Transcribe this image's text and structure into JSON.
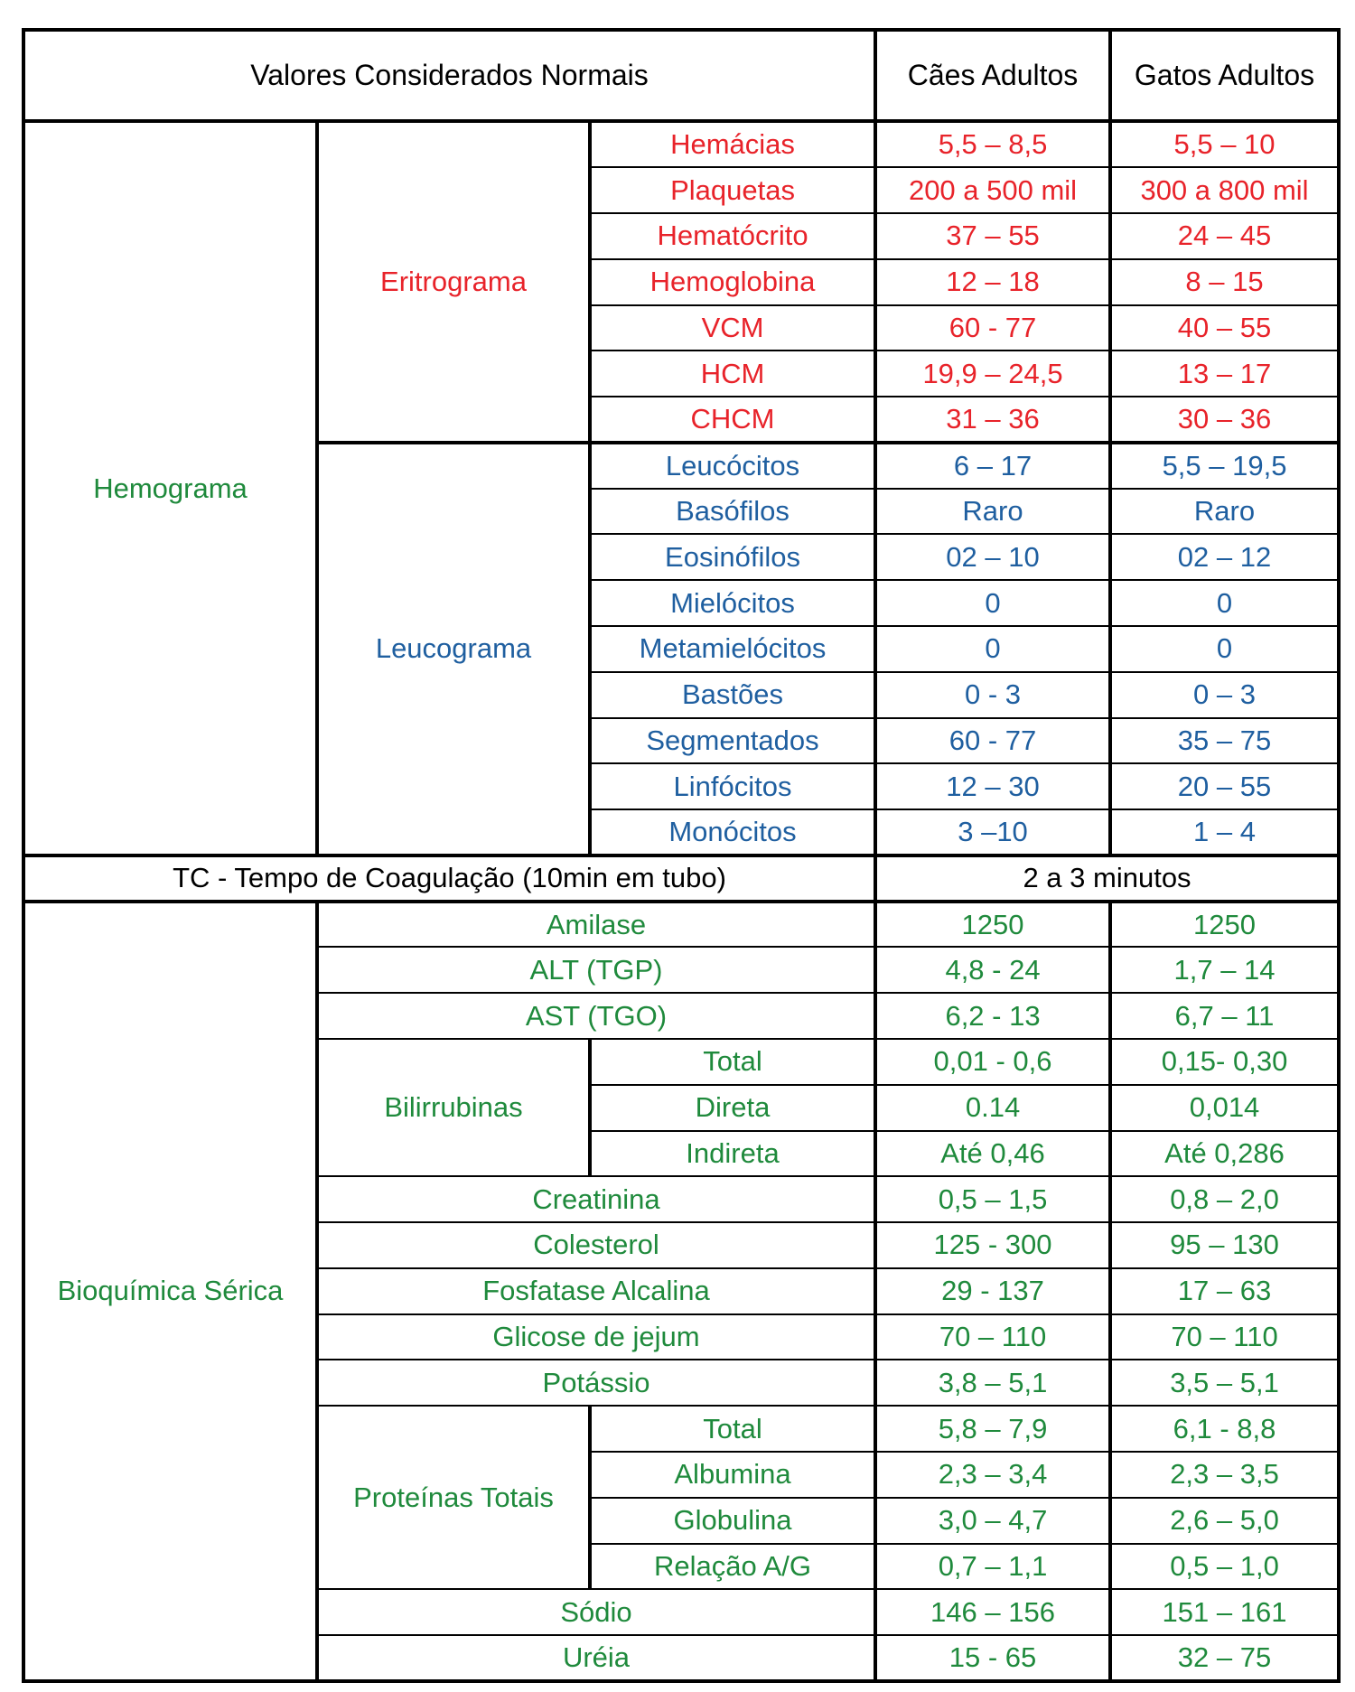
{
  "colors": {
    "red": "#e8232a",
    "blue": "#1f5fa0",
    "green": "#1f8a3c"
  },
  "header": {
    "title": "Valores Considerados Normais",
    "dogs": "Cães Adultos",
    "cats": "Gatos Adultos"
  },
  "hemograma": {
    "label": "Hemograma",
    "eritrograma": {
      "label": "Eritrograma",
      "rows": [
        {
          "name": "Hemácias",
          "dog": "5,5 – 8,5",
          "cat": "5,5 – 10"
        },
        {
          "name": "Plaquetas",
          "dog": "200 a 500 mil",
          "cat": "300 a 800 mil"
        },
        {
          "name": "Hematócrito",
          "dog": "37 – 55",
          "cat": "24 – 45"
        },
        {
          "name": "Hemoglobina",
          "dog": "12 – 18",
          "cat": "8 – 15"
        },
        {
          "name": "VCM",
          "dog": "60 - 77",
          "cat": "40 – 55"
        },
        {
          "name": "HCM",
          "dog": "19,9 – 24,5",
          "cat": "13 – 17"
        },
        {
          "name": "CHCM",
          "dog": "31 – 36",
          "cat": "30 – 36"
        }
      ]
    },
    "leucograma": {
      "label": "Leucograma",
      "rows": [
        {
          "name": "Leucócitos",
          "dog": "6 – 17",
          "cat": "5,5 – 19,5"
        },
        {
          "name": "Basófilos",
          "dog": "Raro",
          "cat": "Raro"
        },
        {
          "name": "Eosinófilos",
          "dog": "02 – 10",
          "cat": "02 – 12"
        },
        {
          "name": "Mielócitos",
          "dog": "0",
          "cat": "0"
        },
        {
          "name": "Metamielócitos",
          "dog": "0",
          "cat": "0"
        },
        {
          "name": "Bastões",
          "dog": "0 - 3",
          "cat": "0 – 3"
        },
        {
          "name": "Segmentados",
          "dog": "60 - 77",
          "cat": "35 – 75"
        },
        {
          "name": "Linfócitos",
          "dog": "12 – 30",
          "cat": "20 – 55"
        },
        {
          "name": "Monócitos",
          "dog": "3 –10",
          "cat": "1 – 4"
        }
      ]
    }
  },
  "tc": {
    "label": "TC - Tempo de Coagulação (10min em tubo)",
    "value": "2 a 3 minutos"
  },
  "bioquimica": {
    "label": "Bioquímica Sérica",
    "amilase": {
      "name": "Amilase",
      "dog": "1250",
      "cat": "1250"
    },
    "alt": {
      "name": "ALT (TGP)",
      "dog": "4,8 - 24",
      "cat": "1,7 – 14"
    },
    "ast": {
      "name": "AST (TGO)",
      "dog": "6,2 - 13",
      "cat": "6,7 – 11"
    },
    "bilirrubinas": {
      "label": "Bilirrubinas",
      "rows": [
        {
          "name": "Total",
          "dog": "0,01 - 0,6",
          "cat": "0,15- 0,30"
        },
        {
          "name": "Direta",
          "dog": "0.14",
          "cat": "0,014"
        },
        {
          "name": "Indireta",
          "dog": "Até 0,46",
          "cat": "Até 0,286"
        }
      ]
    },
    "creatinina": {
      "name": "Creatinina",
      "dog": "0,5 – 1,5",
      "cat": "0,8 – 2,0"
    },
    "colesterol": {
      "name": "Colesterol",
      "dog": "125 - 300",
      "cat": "95 – 130"
    },
    "fosfatase": {
      "name": "Fosfatase Alcalina",
      "dog": "29 - 137",
      "cat": "17 – 63"
    },
    "glicose": {
      "name": "Glicose de jejum",
      "dog": "70 – 110",
      "cat": "70 – 110"
    },
    "potassio": {
      "name": "Potássio",
      "dog": "3,8 – 5,1",
      "cat": "3,5 – 5,1"
    },
    "proteinas": {
      "label": "Proteínas Totais",
      "rows": [
        {
          "name": "Total",
          "dog": "5,8 – 7,9",
          "cat": "6,1 - 8,8"
        },
        {
          "name": "Albumina",
          "dog": "2,3 – 3,4",
          "cat": "2,3 – 3,5"
        },
        {
          "name": "Globulina",
          "dog": "3,0 – 4,7",
          "cat": "2,6 – 5,0"
        },
        {
          "name": "Relação A/G",
          "dog": "0,7 – 1,1",
          "cat": "0,5 – 1,0"
        }
      ]
    },
    "sodio": {
      "name": "Sódio",
      "dog": "146 – 156",
      "cat": "151 – 161"
    },
    "ureia": {
      "name": "Uréia",
      "dog": "15 - 65",
      "cat": "32 – 75"
    }
  }
}
